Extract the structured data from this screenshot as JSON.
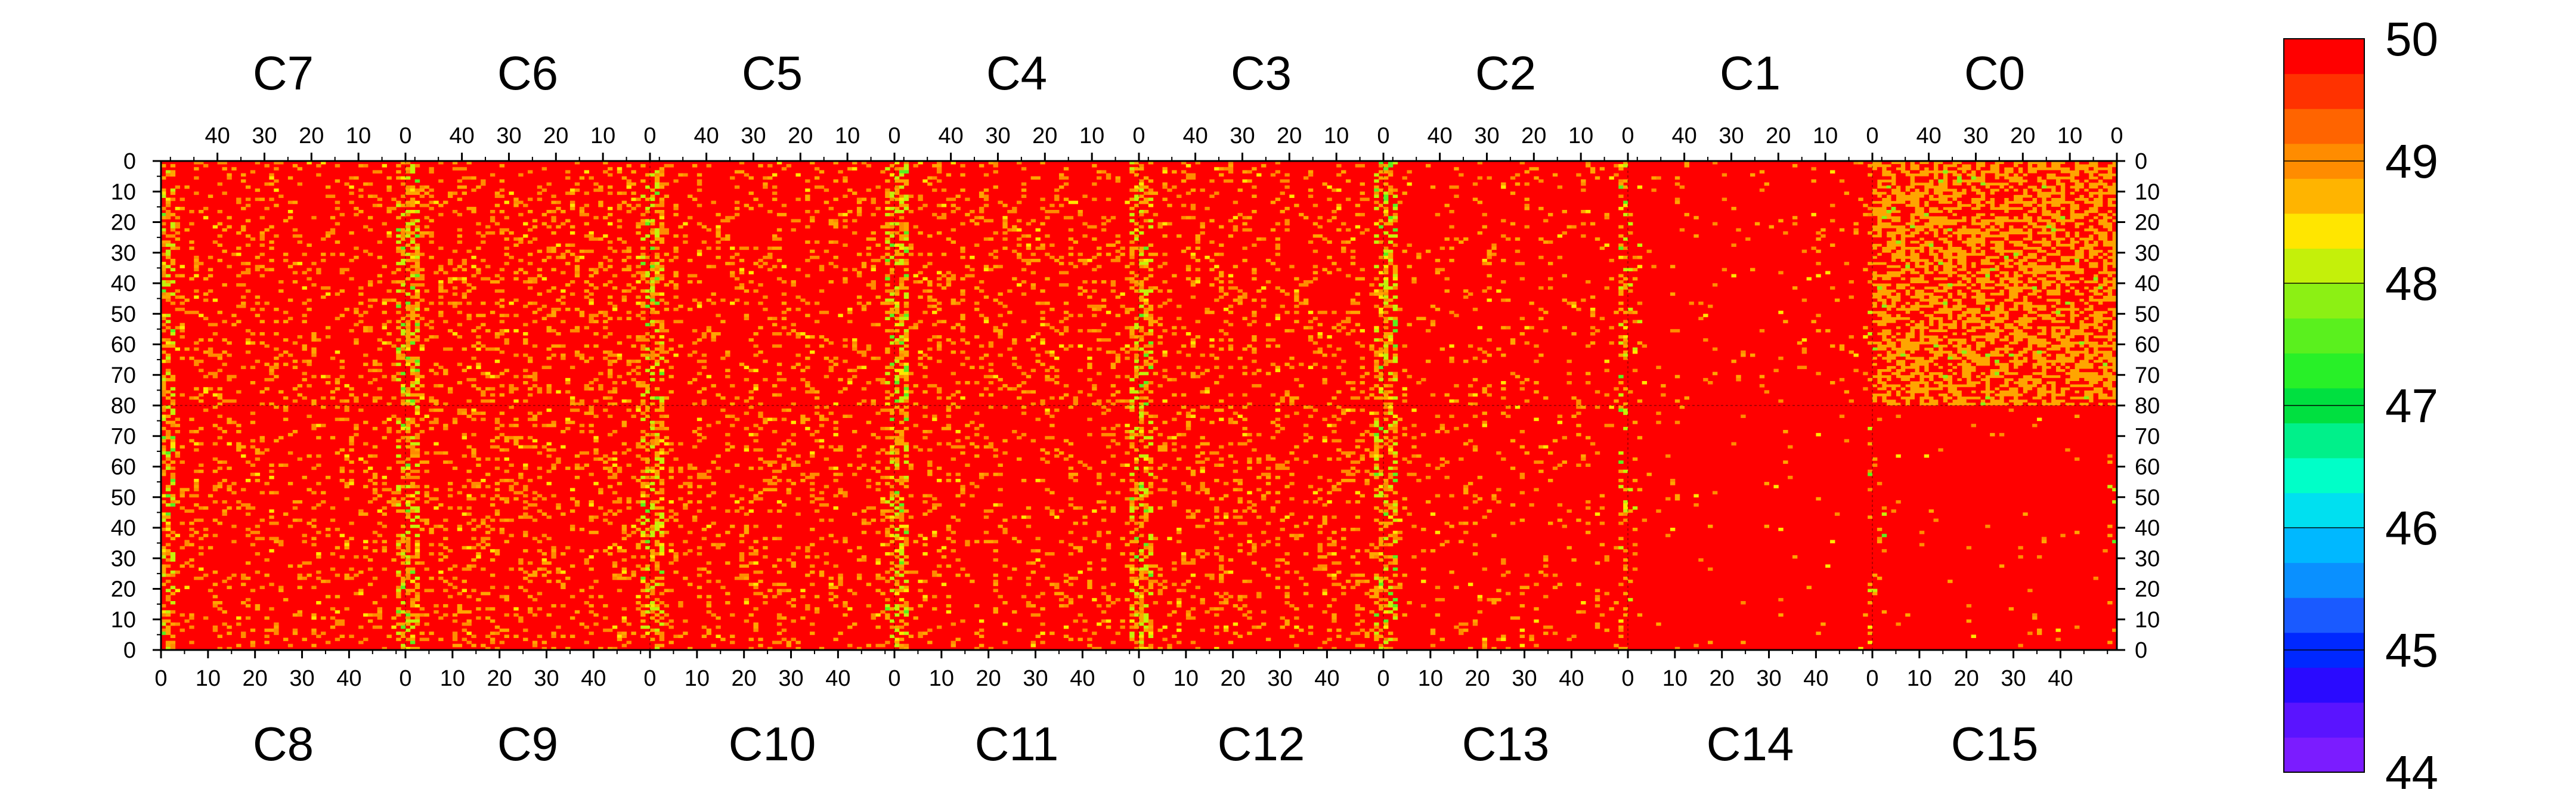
{
  "chart_data": {
    "type": "heatmap",
    "chips_top": [
      "C7",
      "C6",
      "C5",
      "C4",
      "C3",
      "C2",
      "C1",
      "C0"
    ],
    "chips_bottom": [
      "C8",
      "C9",
      "C10",
      "C11",
      "C12",
      "C13",
      "C14",
      "C15"
    ],
    "top_axis_ticks": [
      "40",
      "30",
      "20",
      "10",
      "0"
    ],
    "bottom_axis_ticks": [
      "0",
      "10",
      "20",
      "30",
      "40"
    ],
    "y_ticks_top_half": [
      "0",
      "10",
      "20",
      "30",
      "40",
      "50",
      "60",
      "70",
      "80"
    ],
    "y_ticks_bottom_half": [
      "70",
      "60",
      "50",
      "40",
      "30",
      "20",
      "10",
      "0"
    ],
    "columns_per_chip": 52,
    "rows_per_half": 80,
    "colorbar": {
      "min": 44,
      "max": 50,
      "labels": [
        "50",
        "49",
        "48",
        "47",
        "46",
        "45",
        "44"
      ],
      "colors": [
        "#7b1cff",
        "#5a14ff",
        "#2a0aff",
        "#0028ff",
        "#1a5aff",
        "#0a90ff",
        "#00b8ff",
        "#00e0f0",
        "#00ffc8",
        "#00f08a",
        "#00e040",
        "#28f028",
        "#5af01e",
        "#8cf014",
        "#c4f00a",
        "#ffe600",
        "#ffb400",
        "#ff8c00",
        "#ff6400",
        "#ff3200",
        "#ff0000"
      ]
    },
    "chip_density": {
      "C7": 0.12,
      "C6": 0.16,
      "C5": 0.12,
      "C4": 0.14,
      "C3": 0.12,
      "C2": 0.06,
      "C1": 0.03,
      "C0": 0.55,
      "C8": 0.12,
      "C9": 0.15,
      "C10": 0.13,
      "C11": 0.1,
      "C12": 0.13,
      "C13": 0.06,
      "C14": 0.01,
      "C15": 0.01
    }
  }
}
